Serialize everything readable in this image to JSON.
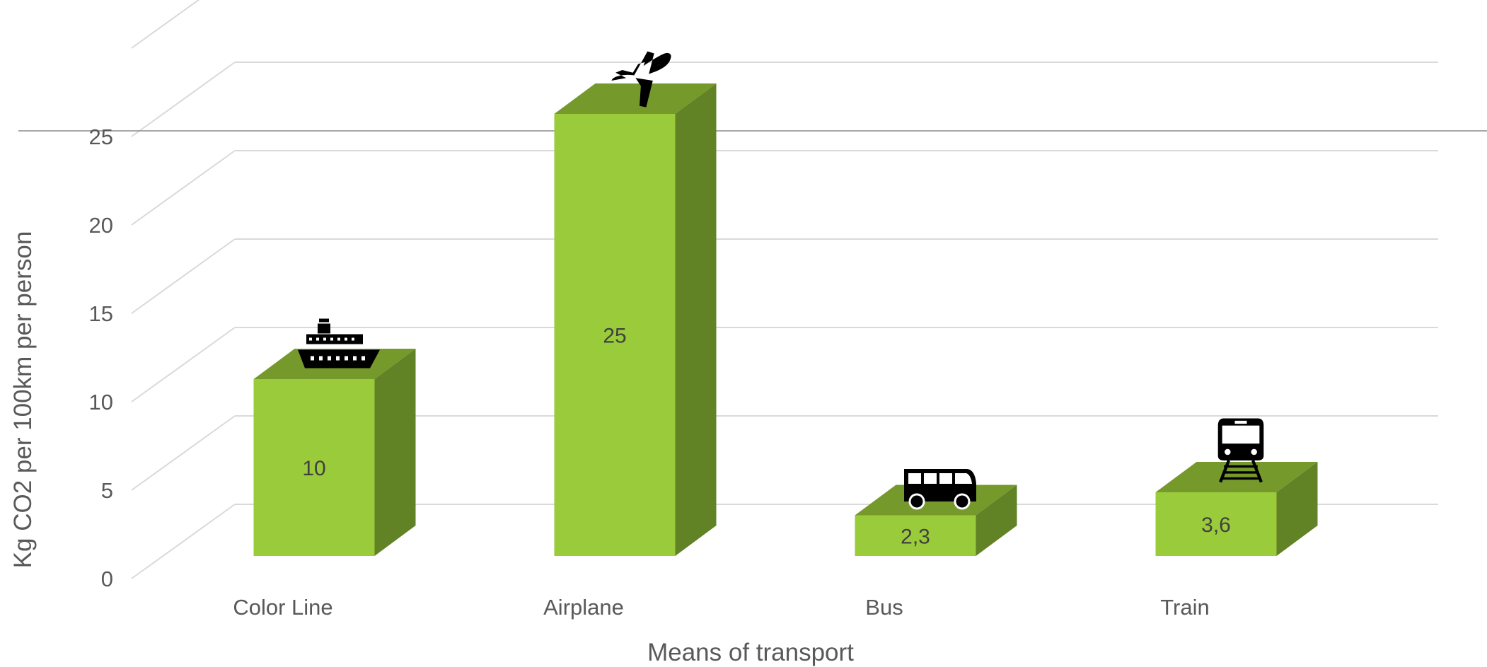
{
  "chart_data": {
    "type": "bar",
    "title": "",
    "xlabel": "Means of transport",
    "ylabel": "Kg CO2 per 100km per person",
    "categories": [
      "Color Line",
      "Airplane",
      "Bus",
      "Train"
    ],
    "values": [
      10,
      25,
      2.3,
      3.6
    ],
    "data_labels": [
      "10",
      "25",
      "2,3",
      "3,6"
    ],
    "category_icons": [
      "ship-icon",
      "airplane-icon",
      "bus-icon",
      "train-icon"
    ],
    "yticks": [
      "0",
      "5",
      "10",
      "15",
      "20",
      "25"
    ],
    "ylim": [
      0,
      30
    ],
    "grid": true,
    "legend": "none",
    "three_d": true,
    "colors": {
      "bar_front": "#9ACB3A",
      "bar_top": "#76992C",
      "bar_side": "#628226",
      "grid": "#D9D9D9",
      "text": "#595959",
      "icon": "#000000",
      "reference_line": "#8C8C8C"
    }
  }
}
